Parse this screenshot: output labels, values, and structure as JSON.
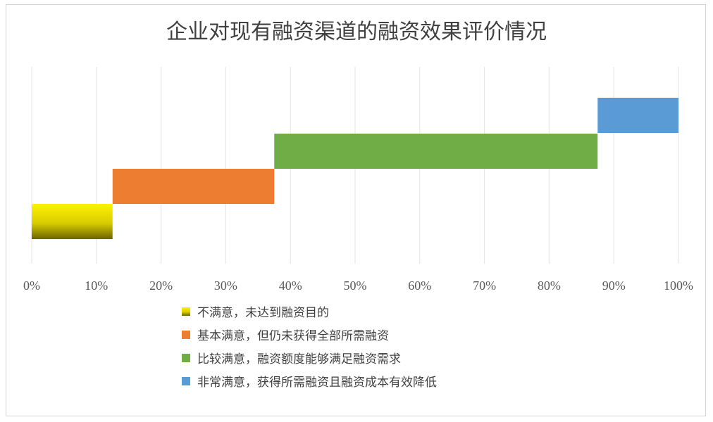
{
  "chart_data": {
    "type": "bar",
    "orientation": "horizontal",
    "stacked": "waterfall",
    "title": "企业对现有融资渠道的融资效果评价情况",
    "xlim": [
      0,
      100
    ],
    "x_ticks": [
      "0%",
      "10%",
      "20%",
      "30%",
      "40%",
      "50%",
      "60%",
      "70%",
      "80%",
      "90%",
      "100%"
    ],
    "grid": true,
    "legend_position": "bottom",
    "series": [
      {
        "name": "不满意，未达到融资目的",
        "start": 0,
        "value": 12.5,
        "color": "#e4d800",
        "gradient": true
      },
      {
        "name": "基本满意，但仍未获得全部所需融资",
        "start": 12.5,
        "value": 25,
        "color": "#ed7d31"
      },
      {
        "name": "比较满意，融资额度能够满足融资需求",
        "start": 37.5,
        "value": 50,
        "color": "#70ad47"
      },
      {
        "name": "非常满意，获得所需融资且融资成本有效降低",
        "start": 87.5,
        "value": 12.5,
        "color": "#5b9bd5"
      }
    ]
  }
}
